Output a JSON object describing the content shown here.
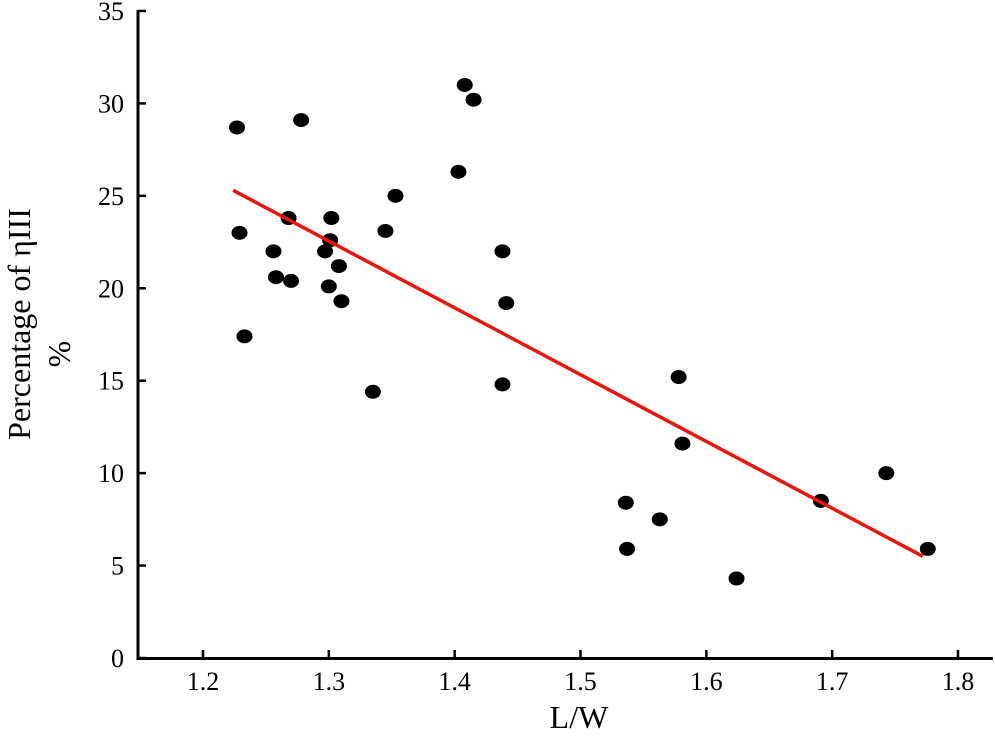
{
  "chart_data": {
    "type": "scatter",
    "title": "",
    "xlabel": "L/W",
    "ylabel": "Percentage of ηIII",
    "ylabel_unit": "%",
    "xlim": [
      1.15,
      1.83
    ],
    "ylim": [
      0,
      35
    ],
    "xticks": [
      1.2,
      1.3,
      1.4,
      1.5,
      1.6,
      1.7,
      1.8
    ],
    "yticks": [
      0,
      5,
      10,
      15,
      20,
      25,
      30,
      35
    ],
    "grid": false,
    "colors": {
      "points": "#000000",
      "trendline": "#e8160c"
    },
    "series": [
      {
        "points": [
          {
            "x": 1.227,
            "y": 28.7
          },
          {
            "x": 1.229,
            "y": 23.0
          },
          {
            "x": 1.233,
            "y": 17.4
          },
          {
            "x": 1.256,
            "y": 22.0
          },
          {
            "x": 1.258,
            "y": 20.6
          },
          {
            "x": 1.268,
            "y": 23.8
          },
          {
            "x": 1.27,
            "y": 20.4
          },
          {
            "x": 1.278,
            "y": 29.1
          },
          {
            "x": 1.297,
            "y": 22.0
          },
          {
            "x": 1.3,
            "y": 20.1
          },
          {
            "x": 1.301,
            "y": 22.6
          },
          {
            "x": 1.302,
            "y": 23.8
          },
          {
            "x": 1.308,
            "y": 21.2
          },
          {
            "x": 1.31,
            "y": 19.3
          },
          {
            "x": 1.335,
            "y": 14.4
          },
          {
            "x": 1.345,
            "y": 23.1
          },
          {
            "x": 1.353,
            "y": 25.0
          },
          {
            "x": 1.403,
            "y": 26.3
          },
          {
            "x": 1.408,
            "y": 31.0
          },
          {
            "x": 1.415,
            "y": 30.2
          },
          {
            "x": 1.438,
            "y": 22.0
          },
          {
            "x": 1.438,
            "y": 14.8
          },
          {
            "x": 1.441,
            "y": 19.2
          },
          {
            "x": 1.536,
            "y": 8.4
          },
          {
            "x": 1.537,
            "y": 5.9
          },
          {
            "x": 1.563,
            "y": 7.5
          },
          {
            "x": 1.578,
            "y": 15.2
          },
          {
            "x": 1.581,
            "y": 11.6
          },
          {
            "x": 1.624,
            "y": 4.3
          },
          {
            "x": 1.691,
            "y": 8.5
          },
          {
            "x": 1.743,
            "y": 10.0
          },
          {
            "x": 1.776,
            "y": 5.9
          }
        ]
      }
    ],
    "trendline": {
      "x1": 1.224,
      "y1": 25.3,
      "x2": 1.772,
      "y2": 5.5
    }
  }
}
